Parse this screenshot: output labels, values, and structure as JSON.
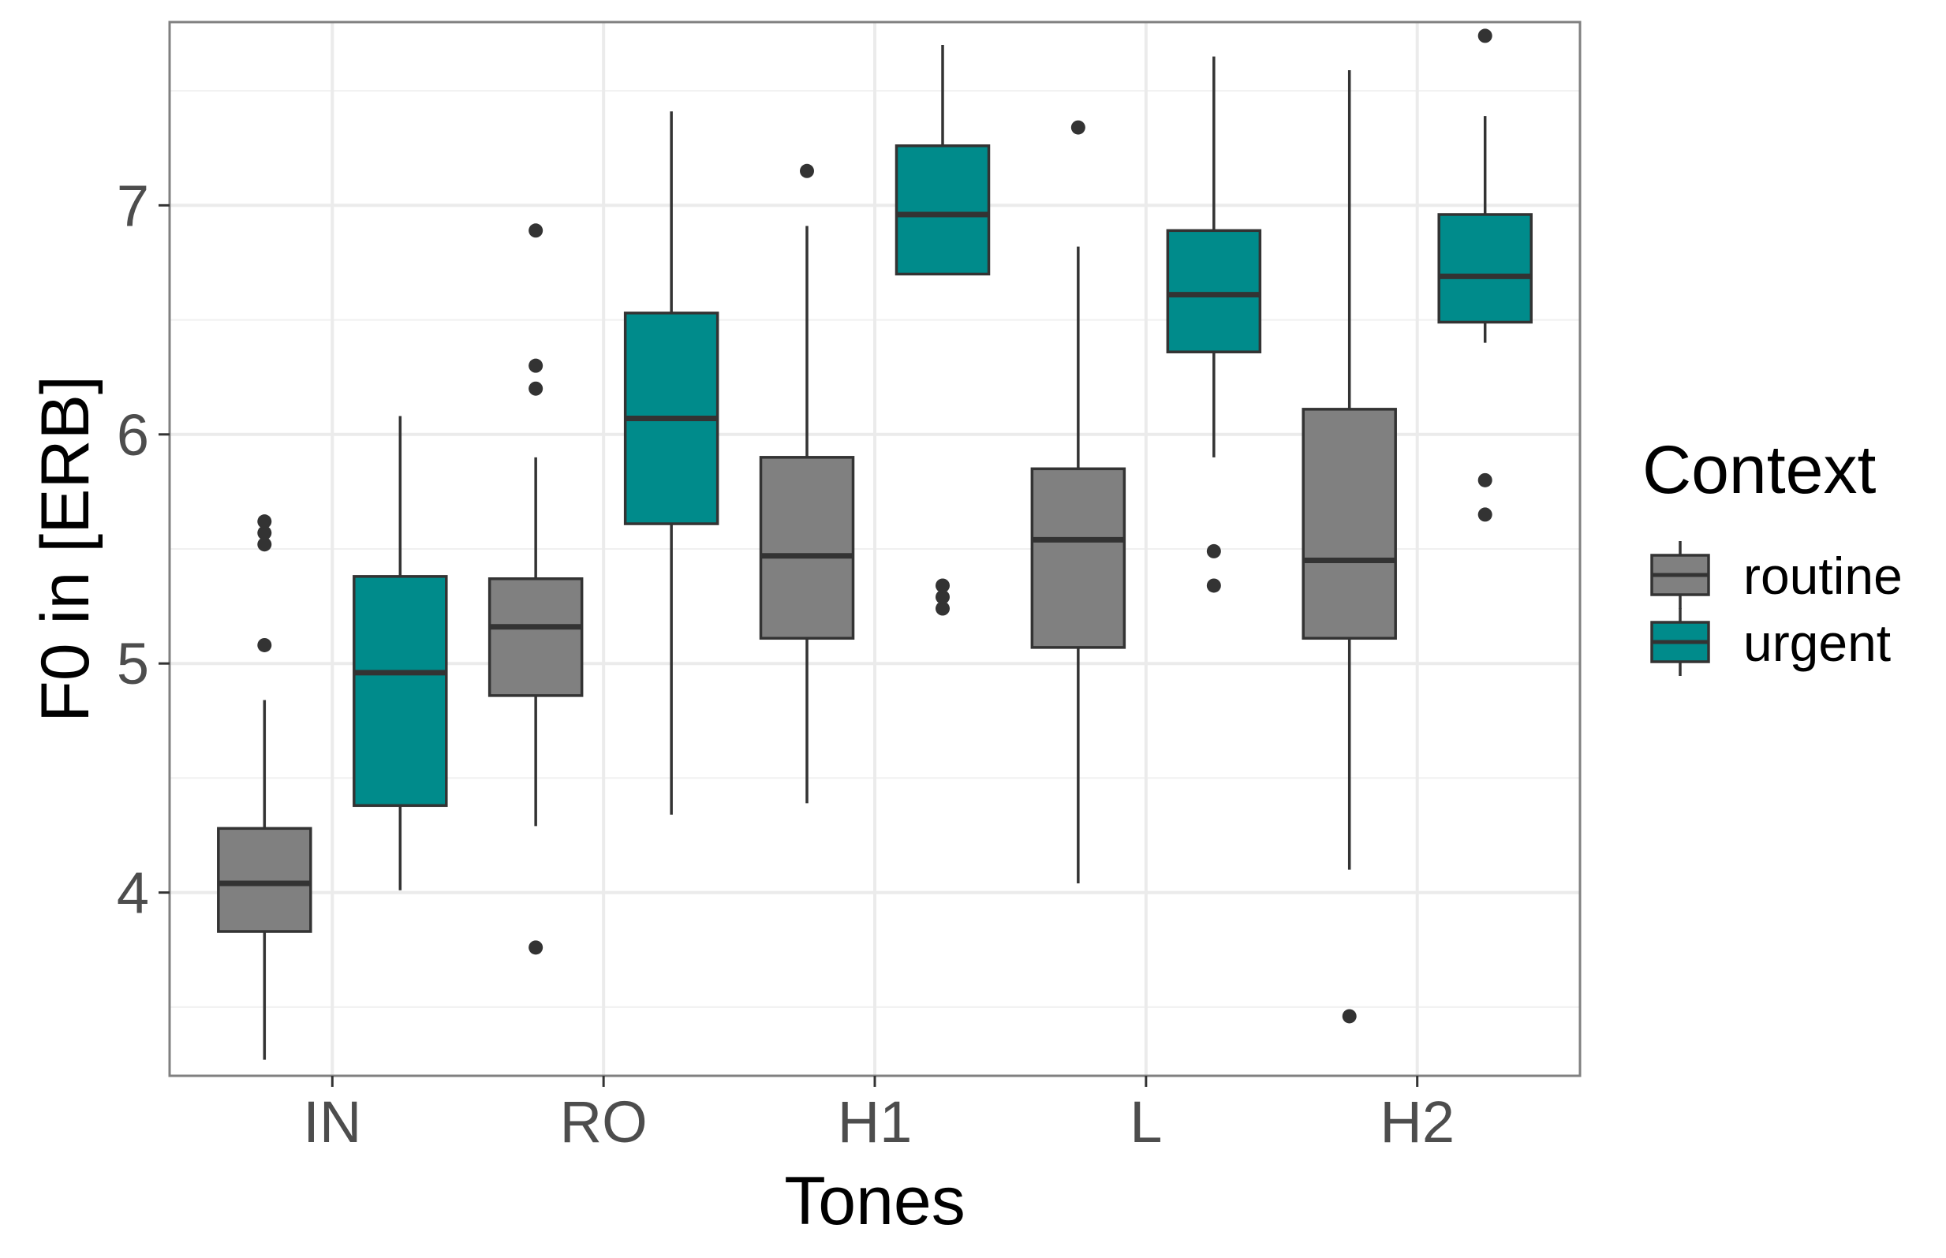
{
  "chart_data": {
    "type": "boxplot",
    "xlabel": "Tones",
    "ylabel": "F0 in [ERB]",
    "ylim": [
      3.2,
      7.8
    ],
    "yticks": [
      4,
      5,
      6,
      7
    ],
    "grid": true,
    "categories": [
      "IN",
      "RO",
      "H1",
      "L",
      "H2"
    ],
    "legend": {
      "title": "Context",
      "position": "right",
      "entries": [
        "routine",
        "urgent"
      ]
    },
    "series": [
      {
        "name": "routine",
        "color": "#808080",
        "boxes": [
          {
            "category": "IN",
            "whisker_low": 3.27,
            "q1": 3.83,
            "median": 4.04,
            "q3": 4.28,
            "whisker_high": 4.84,
            "outliers": [
              5.08,
              5.52,
              5.57,
              5.62
            ]
          },
          {
            "category": "RO",
            "whisker_low": 4.29,
            "q1": 4.86,
            "median": 5.16,
            "q3": 5.37,
            "whisker_high": 5.9,
            "outliers": [
              3.76,
              6.2,
              6.3,
              6.89
            ]
          },
          {
            "category": "H1",
            "whisker_low": 4.39,
            "q1": 5.11,
            "median": 5.47,
            "q3": 5.9,
            "whisker_high": 6.91,
            "outliers": [
              7.15
            ]
          },
          {
            "category": "L",
            "whisker_low": 4.04,
            "q1": 5.07,
            "median": 5.54,
            "q3": 5.85,
            "whisker_high": 6.82,
            "outliers": [
              7.34
            ]
          },
          {
            "category": "H2",
            "whisker_low": 4.1,
            "q1": 5.11,
            "median": 5.45,
            "q3": 6.11,
            "whisker_high": 7.59,
            "outliers": [
              3.46
            ]
          }
        ]
      },
      {
        "name": "urgent",
        "color": "#008b8b",
        "boxes": [
          {
            "category": "IN",
            "whisker_low": 4.01,
            "q1": 4.38,
            "median": 4.96,
            "q3": 5.38,
            "whisker_high": 6.08,
            "outliers": []
          },
          {
            "category": "RO",
            "whisker_low": 4.34,
            "q1": 5.61,
            "median": 6.07,
            "q3": 6.53,
            "whisker_high": 7.41,
            "outliers": []
          },
          {
            "category": "H1",
            "whisker_low": 6.7,
            "q1": 6.7,
            "median": 6.96,
            "q3": 7.26,
            "whisker_high": 7.7,
            "outliers": [
              5.24,
              5.29,
              5.34
            ]
          },
          {
            "category": "L",
            "whisker_low": 5.9,
            "q1": 6.36,
            "median": 6.61,
            "q3": 6.89,
            "whisker_high": 7.65,
            "outliers": [
              5.34,
              5.49
            ]
          },
          {
            "category": "H2",
            "whisker_low": 6.4,
            "q1": 6.49,
            "median": 6.69,
            "q3": 6.96,
            "whisker_high": 7.39,
            "outliers": [
              5.65,
              5.8,
              7.74
            ]
          }
        ]
      }
    ]
  }
}
